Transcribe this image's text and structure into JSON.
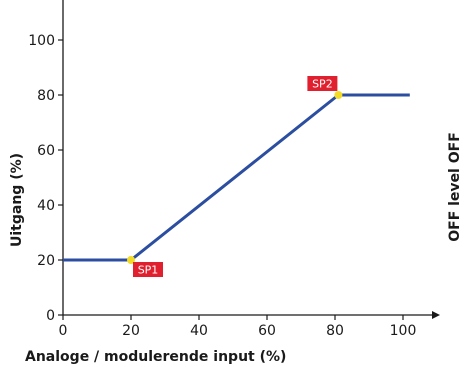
{
  "chart_data": {
    "type": "line",
    "xlabel": "Analoge / modulerende input (%)",
    "ylabel": "Uitgang (%)",
    "right_label": "OFF level OFF",
    "xlim": [
      0,
      105
    ],
    "ylim": [
      0,
      115
    ],
    "x_ticks": [
      0,
      20,
      40,
      60,
      80,
      100
    ],
    "y_ticks": [
      0,
      20,
      40,
      60,
      80,
      100
    ],
    "grid": false,
    "series": [
      {
        "x": [
          0,
          20,
          81,
          102
        ],
        "y": [
          20,
          20,
          80,
          80
        ]
      }
    ],
    "annotations": [
      {
        "label": "SP1",
        "x": 20,
        "y": 20
      },
      {
        "label": "SP2",
        "x": 81,
        "y": 80
      }
    ]
  },
  "colors": {
    "line": "#2b4ea0",
    "axis": "#1a1a1a",
    "marker": "#f2dc28",
    "label_bg": "#e0202e",
    "label_text": "#ffffff"
  }
}
